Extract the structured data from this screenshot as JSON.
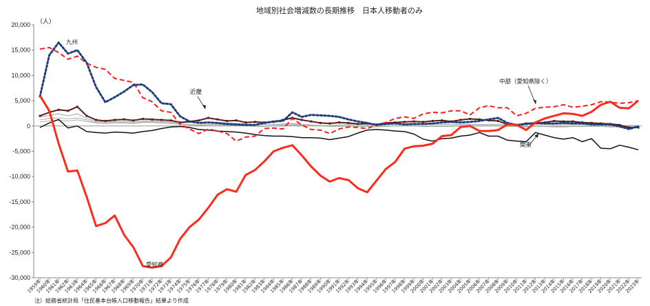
{
  "chart_data": {
    "type": "line",
    "title": "地域別社会増減数の長期推移　日本人移動者のみ",
    "ylabel": "（人）",
    "ylim": [
      -30000,
      20000
    ],
    "ytick_labels": [
      "20,000",
      "15,000",
      "10,000",
      "5,000",
      "0",
      "-5,000",
      "-10,000",
      "-15,000",
      "-20,000",
      "-25,000",
      "-30,000"
    ],
    "x": [
      1959,
      1960,
      1961,
      1962,
      1963,
      1964,
      1965,
      1966,
      1967,
      1968,
      1969,
      1970,
      1971,
      1972,
      1973,
      1974,
      1975,
      1976,
      1977,
      1978,
      1979,
      1980,
      1981,
      1982,
      1983,
      1984,
      1985,
      1986,
      1987,
      1988,
      1989,
      1990,
      1991,
      1992,
      1993,
      1994,
      1995,
      1996,
      1997,
      1998,
      1999,
      2000,
      2001,
      2002,
      2003,
      2004,
      2005,
      2006,
      2007,
      2008,
      2009,
      2010,
      2011,
      2012,
      2013,
      2014,
      2015,
      2016,
      2017,
      2018,
      2019,
      2020,
      2021,
      2022,
      2023
    ],
    "x_labels": [
      "1959年",
      "1960年",
      "1961年",
      "1962年",
      "1963年",
      "1964年",
      "1965年",
      "1966年",
      "1967年",
      "1968年",
      "1969年",
      "1970年",
      "1971年",
      "1972年",
      "1973年",
      "1974年",
      "1975年",
      "1976年",
      "1977年",
      "1978年",
      "1979年",
      "1980年",
      "1981年",
      "1982年",
      "1983年",
      "1984年",
      "1985年",
      "1986年",
      "1987年",
      "1988年",
      "1989年",
      "1990年",
      "1991年",
      "1992年",
      "1993年",
      "1994年",
      "1995年",
      "1996年",
      "1997年",
      "1998年",
      "1999年",
      "2000年",
      "2001年",
      "2002年",
      "2003年",
      "2004年",
      "2005年",
      "2006年",
      "2007年",
      "2008年",
      "2009年",
      "2010年",
      "2011年",
      "2012年",
      "2013年",
      "2014年",
      "2015年",
      "2016年",
      "2017年",
      "2018年",
      "2019年",
      "2020年",
      "2021年",
      "2022年",
      "2023年"
    ],
    "series": [
      {
        "name": "愛知県",
        "color": "#ff2a1a",
        "dash": "solid",
        "width": 3,
        "values": [
          6000,
          3000,
          -3500,
          -9000,
          -8800,
          -14000,
          -19800,
          -19200,
          -17700,
          -21500,
          -24000,
          -27700,
          -28000,
          -27700,
          -26000,
          -22300,
          -20000,
          -18500,
          -16200,
          -13600,
          -12500,
          -13000,
          -9700,
          -8700,
          -7000,
          -5000,
          -4300,
          -3800,
          -5800,
          -8000,
          -9800,
          -11000,
          -10300,
          -10700,
          -12300,
          -13100,
          -10800,
          -8500,
          -7100,
          -4500,
          -4000,
          -3900,
          -3500,
          -2000,
          -1800,
          -200,
          0,
          -1000,
          -1000,
          -800,
          300,
          200,
          -800,
          700,
          1500,
          2000,
          2500,
          2400,
          2000,
          2800,
          4200,
          4800,
          3600,
          3500,
          5000
        ]
      },
      {
        "name": "九州",
        "color": "#1f3d7a",
        "dash": "dot",
        "width": 3,
        "values": [
          5800,
          14000,
          16500,
          14300,
          15000,
          12500,
          7700,
          4700,
          5700,
          6800,
          8100,
          8200,
          6700,
          4500,
          4300,
          1900,
          900,
          600,
          700,
          600,
          400,
          300,
          200,
          200,
          600,
          900,
          1000,
          2700,
          1800,
          2200,
          2100,
          2000,
          1800,
          1300,
          900,
          600,
          200,
          400,
          500,
          300,
          400,
          400,
          500,
          700,
          800,
          700,
          800,
          1000,
          1300,
          1600,
          600,
          200,
          400,
          600,
          500,
          500,
          600,
          500,
          500,
          300,
          300,
          300,
          -100,
          -600,
          -100
        ]
      },
      {
        "name": "中部（愛知県除く）",
        "color": "#ff1a1a",
        "dash": "dash",
        "width": 2,
        "values": [
          15200,
          15500,
          14500,
          13200,
          13800,
          12400,
          11600,
          11200,
          9400,
          9000,
          8600,
          5600,
          4800,
          3000,
          2700,
          300,
          -600,
          -1500,
          -600,
          -1000,
          -1500,
          -3000,
          -2200,
          -2000,
          -500,
          -400,
          -600,
          1500,
          200,
          -700,
          -800,
          -1500,
          -600,
          -200,
          -300,
          -500,
          200,
          700,
          1500,
          1800,
          1500,
          2400,
          2700,
          2600,
          3000,
          3000,
          2200,
          3600,
          4000,
          3600,
          3600,
          2000,
          2500,
          3500,
          3700,
          3800,
          4200,
          3700,
          3900,
          4200,
          4800,
          4700,
          4500,
          4600,
          5000
        ]
      },
      {
        "name": "近畿",
        "color": "#5a1a1a",
        "dash": "solid",
        "width": 2,
        "values": [
          2000,
          2700,
          3200,
          3000,
          3800,
          2000,
          1200,
          1000,
          1200,
          1300,
          1100,
          1400,
          1300,
          1200,
          1100,
          700,
          900,
          1100,
          1600,
          1300,
          1000,
          1100,
          700,
          800,
          700,
          800,
          1200,
          1600,
          1200,
          900,
          600,
          500,
          700,
          600,
          400,
          500,
          300,
          600,
          700,
          800,
          900,
          800,
          1000,
          1100,
          900,
          1200,
          1400,
          1300,
          1100,
          1000,
          300,
          200,
          500,
          600,
          700,
          1000,
          900,
          900,
          700,
          600,
          500,
          400,
          200,
          -300,
          -300
        ]
      },
      {
        "name": "関東",
        "color": "#111111",
        "dash": "solid",
        "width": 1.5,
        "values": [
          -300,
          600,
          1300,
          -400,
          0,
          -1100,
          -1300,
          -1400,
          -1200,
          -1300,
          -1400,
          -1100,
          -900,
          -500,
          -200,
          -100,
          -300,
          -700,
          -800,
          -1000,
          -1100,
          -1200,
          -1400,
          -1700,
          -1900,
          -2000,
          -2000,
          -2100,
          -2300,
          -2300,
          -2400,
          -2700,
          -2400,
          -2100,
          -1400,
          -800,
          -700,
          -800,
          -1000,
          -1100,
          -1600,
          -2600,
          -3000,
          -2500,
          -2400,
          -2000,
          -1800,
          -1300,
          -2000,
          -2000,
          -2800,
          -3000,
          -3100,
          -1300,
          -1800,
          -2300,
          -2600,
          -2300,
          -3100,
          -2500,
          -4400,
          -4500,
          -3800,
          -4200,
          -4700
        ]
      },
      {
        "name": "",
        "color": "#9aa6b8",
        "dash": "solid",
        "width": 1,
        "values": [
          1800,
          2100,
          2400,
          2000,
          2400,
          1500,
          900,
          800,
          900,
          900,
          800,
          1000,
          1000,
          900,
          800,
          600,
          700,
          700,
          800,
          700,
          600,
          500,
          400,
          300,
          300,
          300,
          400,
          500,
          300,
          200,
          100,
          100,
          200,
          300,
          300,
          200,
          200,
          300,
          400,
          400,
          300,
          300,
          300,
          300,
          300,
          300,
          300,
          300,
          300,
          300,
          200,
          200,
          300,
          300,
          300,
          300,
          300,
          300,
          300,
          200,
          200,
          200,
          100,
          100,
          100
        ]
      },
      {
        "name": "",
        "color": "#c8a8a8",
        "dash": "solid",
        "width": 1,
        "values": [
          1200,
          1500,
          1600,
          1400,
          1600,
          1200,
          700,
          600,
          700,
          700,
          600,
          800,
          800,
          700,
          600,
          400,
          300,
          200,
          300,
          300,
          200,
          200,
          100,
          0,
          0,
          100,
          200,
          300,
          200,
          100,
          100,
          0,
          0,
          100,
          0,
          0,
          -100,
          0,
          100,
          100,
          100,
          0,
          0,
          0,
          0,
          100,
          100,
          100,
          100,
          100,
          0,
          0,
          -100,
          0,
          0,
          -100,
          -100,
          0,
          0,
          0,
          0,
          -100,
          -100,
          -200,
          -200
        ]
      },
      {
        "name": "",
        "color": "#98b898",
        "dash": "solid",
        "width": 1,
        "values": [
          800,
          1000,
          1100,
          1000,
          1200,
          900,
          600,
          500,
          600,
          600,
          500,
          700,
          700,
          600,
          500,
          300,
          200,
          100,
          200,
          200,
          100,
          100,
          0,
          -100,
          -100,
          0,
          100,
          200,
          100,
          0,
          0,
          -100,
          -100,
          0,
          -100,
          -100,
          -200,
          -100,
          0,
          0,
          0,
          -100,
          -100,
          -100,
          -100,
          0,
          0,
          0,
          0,
          0,
          -100,
          -100,
          -200,
          -100,
          -100,
          -200,
          -200,
          -100,
          -100,
          -100,
          -100,
          -200,
          -200,
          -300,
          -300
        ]
      }
    ],
    "annotations": [
      "九州",
      "近畿",
      "中部（愛知県除く）",
      "関東",
      "愛知県"
    ],
    "note": "注）総務省統計局「住民基本台帳人口移動報告」結果より作成",
    "grid": false,
    "legend": "none"
  }
}
